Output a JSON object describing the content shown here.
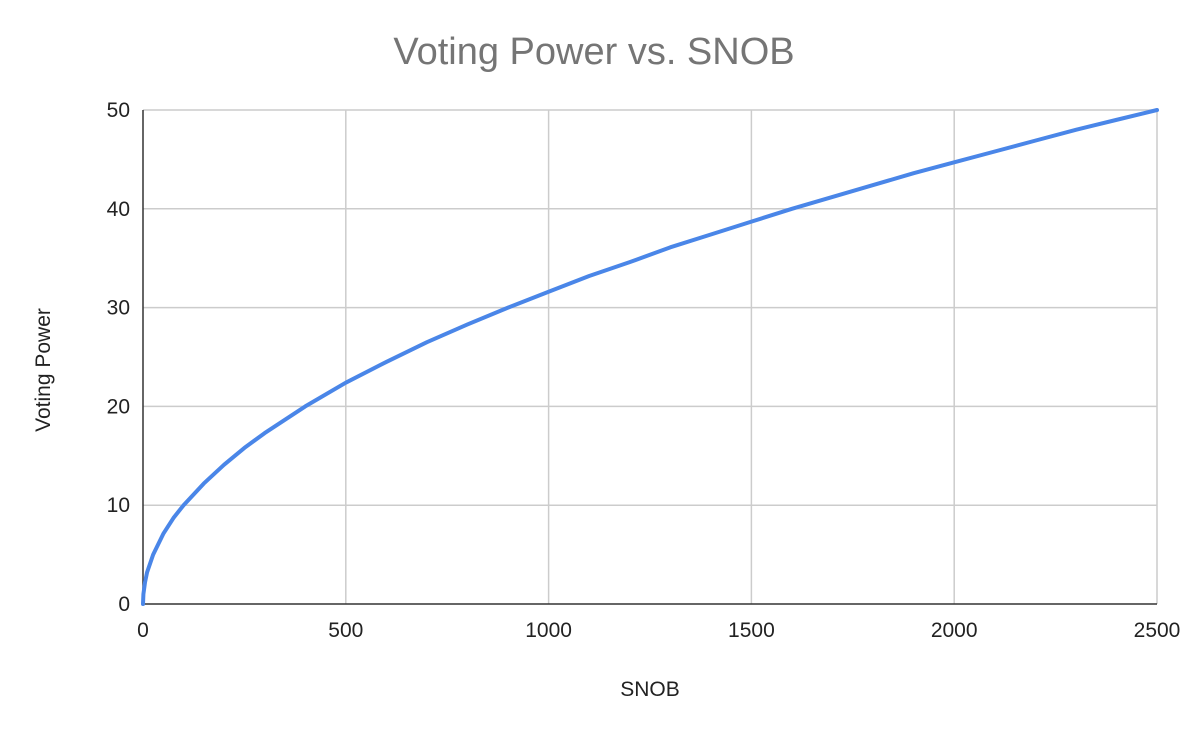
{
  "chart_data": {
    "type": "line",
    "title": "Voting Power vs. SNOB",
    "xlabel": "SNOB",
    "ylabel": "Voting Power",
    "xlim": [
      0,
      2500
    ],
    "ylim": [
      0,
      50
    ],
    "x_ticks": [
      0,
      500,
      1000,
      1500,
      2000,
      2500
    ],
    "y_ticks": [
      0,
      10,
      20,
      30,
      40,
      50
    ],
    "x_tick_labels": [
      "0",
      "500",
      "1000",
      "1500",
      "2000",
      "2500"
    ],
    "y_tick_labels": [
      "0",
      "10",
      "20",
      "30",
      "40",
      "50"
    ],
    "grid": true,
    "legend": "none",
    "series": [
      {
        "color": "#4a86e8",
        "x": [
          0,
          1,
          5,
          10,
          25,
          50,
          75,
          100,
          150,
          200,
          250,
          300,
          400,
          500,
          600,
          700,
          800,
          900,
          1000,
          1100,
          1200,
          1300,
          1400,
          1500,
          1600,
          1700,
          1800,
          1900,
          2000,
          2100,
          2200,
          2300,
          2400,
          2500
        ],
        "y": [
          0,
          1,
          2.2,
          3.2,
          5,
          7.1,
          8.7,
          10,
          12.2,
          14.1,
          15.8,
          17.3,
          20,
          22.4,
          24.5,
          26.5,
          28.3,
          30,
          31.6,
          33.2,
          34.6,
          36.1,
          37.4,
          38.7,
          40,
          41.2,
          42.4,
          43.6,
          44.7,
          45.8,
          46.9,
          48,
          49,
          50
        ]
      }
    ]
  }
}
